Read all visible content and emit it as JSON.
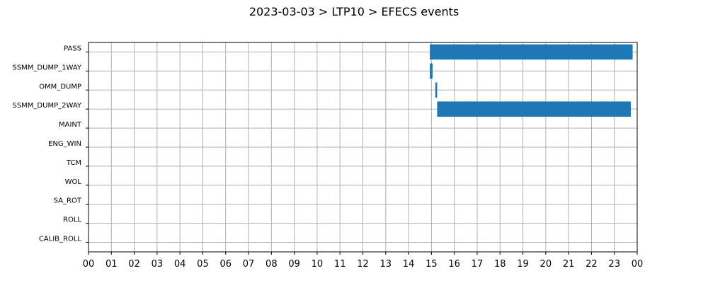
{
  "chart_data": {
    "type": "bar",
    "orientation": "horizontal-timeline",
    "title": "2023-03-03 > LTP10 > EFECS events",
    "xlabel": "",
    "ylabel": "",
    "xlim": [
      0,
      24
    ],
    "x_ticks": [
      "00",
      "01",
      "02",
      "03",
      "04",
      "05",
      "06",
      "07",
      "08",
      "09",
      "10",
      "11",
      "12",
      "13",
      "14",
      "15",
      "16",
      "17",
      "18",
      "19",
      "20",
      "21",
      "22",
      "23",
      "00"
    ],
    "categories": [
      "PASS",
      "SSMM_DUMP_1WAY",
      "OMM_DUMP",
      "SSMM_DUMP_2WAY",
      "MAINT",
      "ENG_WIN",
      "TCM",
      "WOL",
      "SA_ROT",
      "ROLL",
      "CALIB_ROLL"
    ],
    "grid": true,
    "bar_color": "#1f77b4",
    "events": [
      {
        "category": "PASS",
        "start": 14.93,
        "end": 23.8
      },
      {
        "category": "SSMM_DUMP_1WAY",
        "start": 14.93,
        "end": 15.05
      },
      {
        "category": "OMM_DUMP",
        "start": 15.17,
        "end": 15.25
      },
      {
        "category": "SSMM_DUMP_2WAY",
        "start": 15.25,
        "end": 23.72
      }
    ]
  }
}
